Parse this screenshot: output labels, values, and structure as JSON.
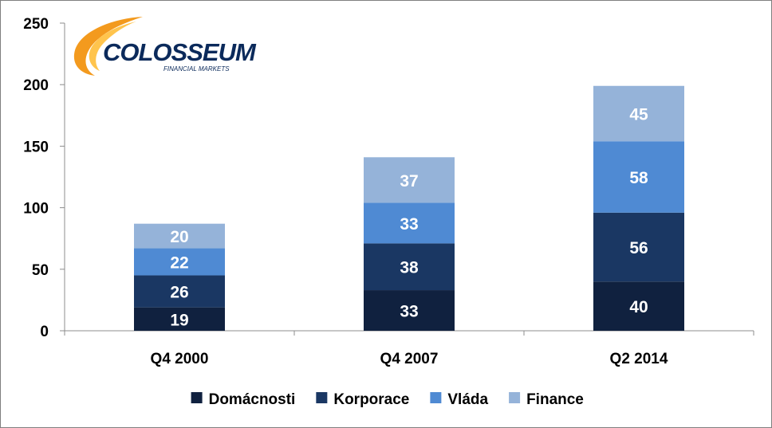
{
  "logo": {
    "name": "COLOSSEUM",
    "tagline": "FINANCIAL MARKETS"
  },
  "chart_data": {
    "type": "bar",
    "stacked": true,
    "title": "",
    "xlabel": "",
    "ylabel": "",
    "categories": [
      "Q4 2000",
      "Q4 2007",
      "Q2 2014"
    ],
    "ylim": [
      0,
      250
    ],
    "yticks": [
      0,
      50,
      100,
      150,
      200,
      250
    ],
    "grid": false,
    "legend_position": "bottom",
    "series": [
      {
        "name": "Domácnosti",
        "values": [
          19,
          33,
          40
        ],
        "color": "#10213f"
      },
      {
        "name": "Korporace",
        "values": [
          26,
          38,
          56
        ],
        "color": "#1a3763"
      },
      {
        "name": "Vláda",
        "values": [
          22,
          33,
          58
        ],
        "color": "#4f8ad3"
      },
      {
        "name": "Finance",
        "values": [
          20,
          37,
          45
        ],
        "color": "#95b3d9"
      }
    ]
  }
}
